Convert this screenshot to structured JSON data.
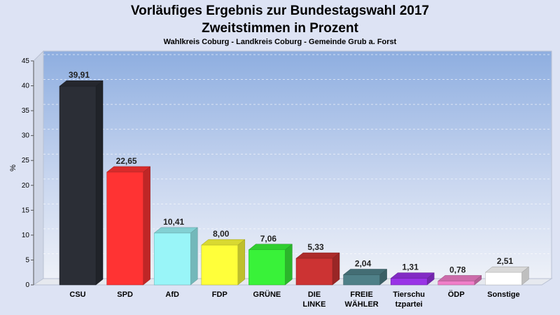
{
  "header": {
    "title": "Vorläufiges Ergebnis zur Bundestagswahl 2017",
    "subtitle": "Zweitstimmen in Prozent",
    "caption": "Wahlkreis Coburg - Landkreis Coburg - Gemeinde Grub a. Forst"
  },
  "chart_data": {
    "type": "bar",
    "title": "Vorläufiges Ergebnis zur Bundestagswahl 2017",
    "subtitle": "Zweitstimmen in Prozent",
    "ylabel": "%",
    "xlabel": "",
    "ylim": [
      0,
      45
    ],
    "yticks": [
      0,
      5,
      10,
      15,
      20,
      25,
      30,
      35,
      40,
      45
    ],
    "grid": true,
    "legend": "none",
    "categories": [
      [
        "CSU"
      ],
      [
        "SPD"
      ],
      [
        "AfD"
      ],
      [
        "FDP"
      ],
      [
        "GRÜNE"
      ],
      [
        "DIE",
        "LINKE"
      ],
      [
        "FREIE",
        "WÄHLER"
      ],
      [
        "Tierschu",
        "tzpartei"
      ],
      [
        "ÖDP"
      ],
      [
        "Sonstige"
      ]
    ],
    "values": [
      39.91,
      22.65,
      10.41,
      8.0,
      7.06,
      5.33,
      2.04,
      1.31,
      0.78,
      2.51
    ],
    "value_labels": [
      "39,91",
      "22,65",
      "10,41",
      "8,00",
      "7,06",
      "5,33",
      "2,04",
      "1,31",
      "0,78",
      "2,51"
    ],
    "colors": [
      "#2b2e36",
      "#ff3333",
      "#99f5f8",
      "#ffff3a",
      "#39f239",
      "#cc3333",
      "#4f8088",
      "#9933e6",
      "#f07ec8",
      "#ffffff"
    ]
  }
}
